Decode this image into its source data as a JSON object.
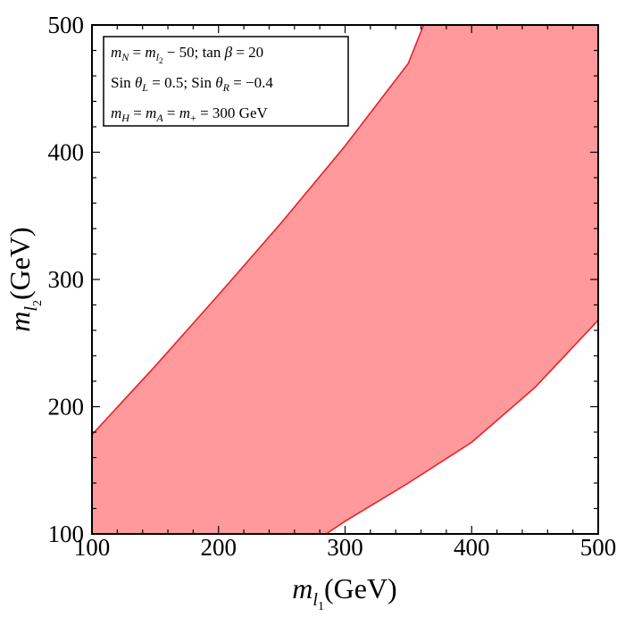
{
  "chart_data": {
    "type": "area",
    "title": "",
    "xlabel": {
      "base": "m",
      "sub": "l",
      "subsub": "1",
      "unit": "(GeV)"
    },
    "ylabel": {
      "base": "m",
      "sub": "l",
      "subsub": "2",
      "unit": "(GeV)"
    },
    "xlim": [
      100,
      500
    ],
    "ylim": [
      100,
      500
    ],
    "xticks": [
      100,
      200,
      300,
      400,
      500
    ],
    "yticks": [
      100,
      200,
      300,
      400,
      500
    ],
    "grid": false,
    "legend_placement": "top-left",
    "annotation_lines": [
      "m_N = m_l2 − 50;  tan β = 20",
      "Sin θ_L = 0.5; Sin θ_R = −0.4",
      "m_H = m_A = m_+ = 300 GeV"
    ],
    "band": {
      "fill_color": "#ff999b",
      "edge_color": "#e8202a",
      "upper_boundary": [
        [
          100,
          178
        ],
        [
          150,
          232
        ],
        [
          200,
          288
        ],
        [
          250,
          345
        ],
        [
          300,
          405
        ],
        [
          350,
          470
        ],
        [
          362,
          500
        ]
      ],
      "lower_boundary": [
        [
          285,
          100
        ],
        [
          300,
          110
        ],
        [
          350,
          140
        ],
        [
          400,
          172
        ],
        [
          450,
          215
        ],
        [
          500,
          268
        ]
      ]
    }
  }
}
